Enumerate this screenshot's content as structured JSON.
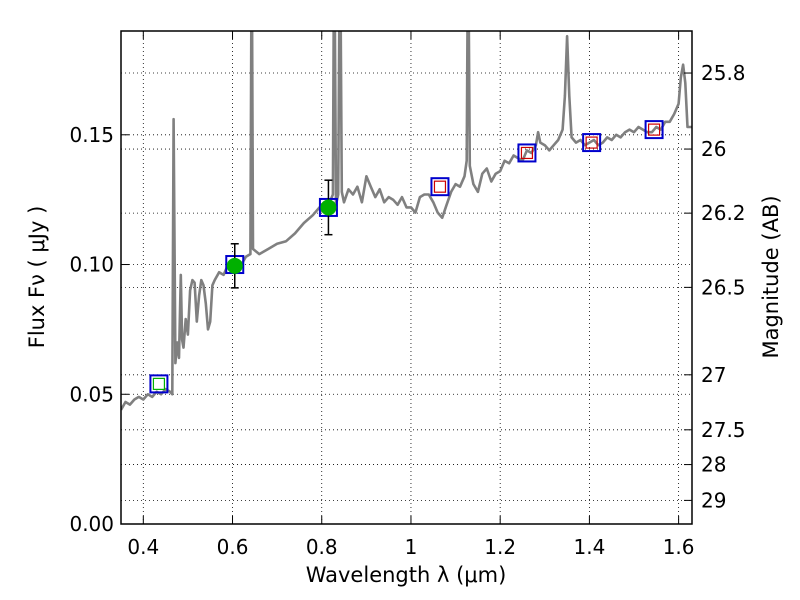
{
  "chart_data": {
    "type": "line",
    "xlabel": "Wavelength  λ (μm)",
    "ylabel": "Flux  Fν  ( μJy )",
    "ylabel_right": "Magnitude (AB)",
    "xlim": [
      0.35,
      1.63
    ],
    "ylim": [
      0.0,
      0.19
    ],
    "x_ticks": [
      0.4,
      0.6,
      0.8,
      1.0,
      1.2,
      1.4,
      1.6
    ],
    "x_tick_labels": [
      "0.4",
      "0.6",
      "0.8",
      "1",
      "1.2",
      "1.4",
      "1.6"
    ],
    "y_ticks": [
      0.0,
      0.05,
      0.1,
      0.15
    ],
    "y_tick_labels": [
      "0.00",
      "0.05",
      "0.10",
      "0.15"
    ],
    "right_ticks": [
      {
        "flux": 0.1738,
        "label": "25.8"
      },
      {
        "flux": 0.1445,
        "label": "26"
      },
      {
        "flux": 0.1198,
        "label": "26.2"
      },
      {
        "flux": 0.0912,
        "label": "26.5"
      },
      {
        "flux": 0.0575,
        "label": "27"
      },
      {
        "flux": 0.0363,
        "label": "27.5"
      },
      {
        "flux": 0.0229,
        "label": "28"
      },
      {
        "flux": 0.0091,
        "label": "29"
      }
    ],
    "grid": true,
    "colors": {
      "spectrum": "#808080",
      "observed_point": "#00b000",
      "model_box": "#0000cc",
      "predicted_box": "#cc0000",
      "error_bar": "#000000"
    },
    "series": [
      {
        "kind": "spectrum",
        "points": [
          [
            0.35,
            0.044
          ],
          [
            0.36,
            0.047
          ],
          [
            0.37,
            0.046
          ],
          [
            0.38,
            0.048
          ],
          [
            0.39,
            0.049
          ],
          [
            0.4,
            0.048
          ],
          [
            0.41,
            0.05
          ],
          [
            0.42,
            0.049
          ],
          [
            0.43,
            0.051
          ],
          [
            0.44,
            0.05
          ],
          [
            0.45,
            0.052
          ],
          [
            0.46,
            0.051
          ],
          [
            0.465,
            0.05
          ],
          [
            0.468,
            0.156
          ],
          [
            0.472,
            0.062
          ],
          [
            0.476,
            0.07
          ],
          [
            0.48,
            0.064
          ],
          [
            0.484,
            0.096
          ],
          [
            0.487,
            0.071
          ],
          [
            0.49,
            0.068
          ],
          [
            0.495,
            0.079
          ],
          [
            0.5,
            0.073
          ],
          [
            0.505,
            0.09
          ],
          [
            0.51,
            0.094
          ],
          [
            0.515,
            0.093
          ],
          [
            0.52,
            0.078
          ],
          [
            0.525,
            0.088
          ],
          [
            0.53,
            0.094
          ],
          [
            0.535,
            0.092
          ],
          [
            0.54,
            0.085
          ],
          [
            0.545,
            0.075
          ],
          [
            0.55,
            0.078
          ],
          [
            0.555,
            0.092
          ],
          [
            0.56,
            0.094
          ],
          [
            0.57,
            0.097
          ],
          [
            0.58,
            0.096
          ],
          [
            0.59,
            0.1
          ],
          [
            0.6,
            0.099
          ],
          [
            0.61,
            0.101
          ],
          [
            0.62,
            0.1
          ],
          [
            0.63,
            0.103
          ],
          [
            0.64,
            0.104
          ],
          [
            0.643,
            0.23
          ],
          [
            0.646,
            0.106
          ],
          [
            0.66,
            0.104
          ],
          [
            0.68,
            0.106
          ],
          [
            0.7,
            0.108
          ],
          [
            0.72,
            0.109
          ],
          [
            0.74,
            0.112
          ],
          [
            0.76,
            0.116
          ],
          [
            0.78,
            0.119
          ],
          [
            0.8,
            0.123
          ],
          [
            0.81,
            0.124
          ],
          [
            0.82,
            0.125
          ],
          [
            0.825,
            0.127
          ],
          [
            0.828,
            0.235
          ],
          [
            0.832,
            0.123
          ],
          [
            0.837,
            0.127
          ],
          [
            0.841,
            0.235
          ],
          [
            0.845,
            0.128
          ],
          [
            0.85,
            0.124
          ],
          [
            0.86,
            0.129
          ],
          [
            0.87,
            0.127
          ],
          [
            0.88,
            0.13
          ],
          [
            0.89,
            0.124
          ],
          [
            0.9,
            0.134
          ],
          [
            0.91,
            0.13
          ],
          [
            0.92,
            0.126
          ],
          [
            0.93,
            0.129
          ],
          [
            0.94,
            0.124
          ],
          [
            0.95,
            0.126
          ],
          [
            0.96,
            0.125
          ],
          [
            0.97,
            0.123
          ],
          [
            0.98,
            0.126
          ],
          [
            0.99,
            0.122
          ],
          [
            1.0,
            0.122
          ],
          [
            1.01,
            0.12
          ],
          [
            1.02,
            0.126
          ],
          [
            1.03,
            0.127
          ],
          [
            1.04,
            0.127
          ],
          [
            1.05,
            0.124
          ],
          [
            1.06,
            0.12
          ],
          [
            1.07,
            0.118
          ],
          [
            1.08,
            0.123
          ],
          [
            1.09,
            0.128
          ],
          [
            1.1,
            0.131
          ],
          [
            1.11,
            0.13
          ],
          [
            1.12,
            0.134
          ],
          [
            1.125,
            0.14
          ],
          [
            1.128,
            0.232
          ],
          [
            1.132,
            0.138
          ],
          [
            1.14,
            0.131
          ],
          [
            1.15,
            0.128
          ],
          [
            1.16,
            0.135
          ],
          [
            1.17,
            0.137
          ],
          [
            1.18,
            0.132
          ],
          [
            1.19,
            0.135
          ],
          [
            1.2,
            0.136
          ],
          [
            1.21,
            0.14
          ],
          [
            1.22,
            0.139
          ],
          [
            1.23,
            0.142
          ],
          [
            1.24,
            0.141
          ],
          [
            1.25,
            0.14
          ],
          [
            1.26,
            0.144
          ],
          [
            1.27,
            0.143
          ],
          [
            1.28,
            0.146
          ],
          [
            1.285,
            0.151
          ],
          [
            1.29,
            0.147
          ],
          [
            1.3,
            0.146
          ],
          [
            1.31,
            0.144
          ],
          [
            1.32,
            0.146
          ],
          [
            1.33,
            0.148
          ],
          [
            1.34,
            0.152
          ],
          [
            1.345,
            0.165
          ],
          [
            1.35,
            0.188
          ],
          [
            1.355,
            0.165
          ],
          [
            1.36,
            0.149
          ],
          [
            1.37,
            0.147
          ],
          [
            1.38,
            0.148
          ],
          [
            1.39,
            0.146
          ],
          [
            1.4,
            0.147
          ],
          [
            1.41,
            0.148
          ],
          [
            1.42,
            0.146
          ],
          [
            1.43,
            0.147
          ],
          [
            1.44,
            0.149
          ],
          [
            1.45,
            0.148
          ],
          [
            1.46,
            0.15
          ],
          [
            1.47,
            0.149
          ],
          [
            1.48,
            0.151
          ],
          [
            1.49,
            0.152
          ],
          [
            1.5,
            0.151
          ],
          [
            1.51,
            0.153
          ],
          [
            1.52,
            0.152
          ],
          [
            1.53,
            0.151
          ],
          [
            1.54,
            0.151
          ],
          [
            1.55,
            0.153
          ],
          [
            1.56,
            0.152
          ],
          [
            1.57,
            0.155
          ],
          [
            1.58,
            0.155
          ],
          [
            1.59,
            0.158
          ],
          [
            1.6,
            0.162
          ],
          [
            1.605,
            0.172
          ],
          [
            1.61,
            0.177
          ],
          [
            1.615,
            0.17
          ],
          [
            1.62,
            0.153
          ],
          [
            1.63,
            0.153
          ]
        ]
      },
      {
        "kind": "model_boxes",
        "points": [
          [
            0.435,
            0.054
          ],
          [
            0.605,
            0.1
          ],
          [
            0.815,
            0.122
          ],
          [
            1.065,
            0.13
          ],
          [
            1.26,
            0.143
          ],
          [
            1.405,
            0.147
          ],
          [
            1.545,
            0.152
          ]
        ]
      },
      {
        "kind": "predicted_boxes",
        "points": [
          [
            1.065,
            0.13
          ],
          [
            1.26,
            0.143
          ],
          [
            1.405,
            0.147
          ],
          [
            1.545,
            0.152
          ]
        ]
      },
      {
        "kind": "observed",
        "points": [
          {
            "x": 0.605,
            "y": 0.0995,
            "err": 0.0085
          },
          {
            "x": 0.815,
            "y": 0.122,
            "err": 0.0105
          }
        ]
      },
      {
        "kind": "upper_limit_box",
        "points": [
          [
            0.435,
            0.054
          ]
        ]
      }
    ]
  }
}
